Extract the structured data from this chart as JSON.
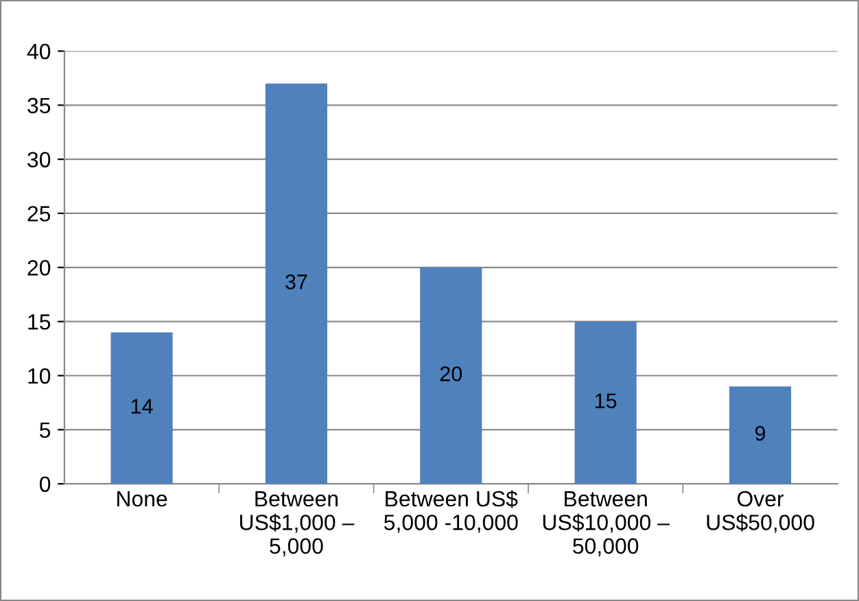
{
  "chart_data": {
    "type": "bar",
    "categories": [
      "None",
      "Between\nUS$1,000 –\n5,000",
      "Between US$\n5,000 -10,000",
      "Between\nUS$10,000 –\n50,000",
      "Over\nUS$50,000"
    ],
    "values": [
      14,
      37,
      20,
      15,
      9
    ],
    "color": "#4f81bd",
    "ylim": [
      0,
      40
    ],
    "yticks": [
      0,
      5,
      10,
      15,
      20,
      25,
      30,
      35,
      40
    ],
    "grid": "y",
    "data_labels": true
  }
}
